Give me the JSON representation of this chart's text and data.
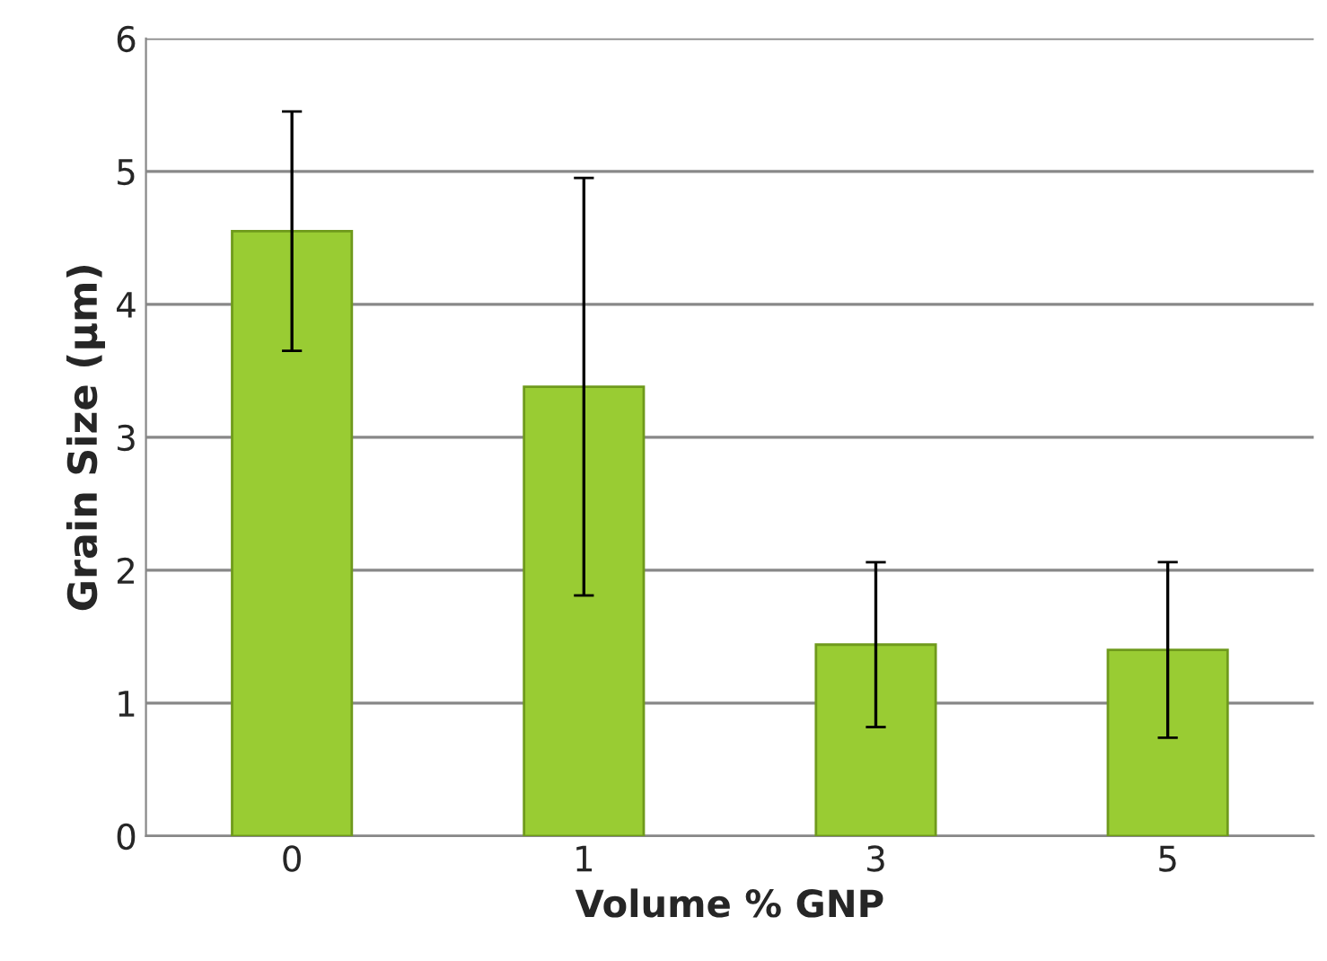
{
  "chart_data": {
    "type": "bar",
    "xlabel": "Volume % GNP",
    "ylabel": "Grain Size (µm)",
    "categories": [
      "0",
      "1",
      "3",
      "5"
    ],
    "values": [
      4.55,
      3.38,
      1.44,
      1.4
    ],
    "errors": [
      0.9,
      1.57,
      0.62,
      0.66
    ],
    "color": "#99cc33",
    "ylim": [
      0,
      6
    ],
    "yticks": [
      0,
      1,
      2,
      3,
      4,
      5,
      6
    ],
    "grid": "y",
    "legend": false
  }
}
